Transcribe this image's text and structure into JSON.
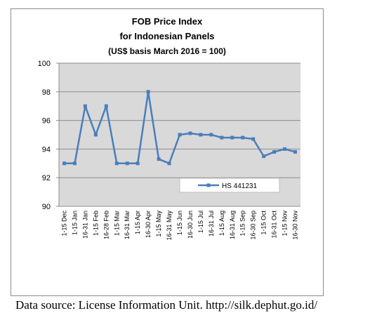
{
  "chart_data": {
    "type": "line",
    "title": [
      "FOB Price Index",
      "for Indonesian Panels",
      "(US$ basis March 2016 = 100)"
    ],
    "xlabel": "",
    "ylabel": "",
    "categories": [
      "1-15 Dec",
      "1-15 Jan",
      "16-31 Jan",
      "1-15 Feb",
      "16-28 Feb",
      "1-15 Mar",
      "16-31 Mar",
      "1-15 Apr",
      "16-30 Apr",
      "1-15 May",
      "16-31 May",
      "1-15 Jun",
      "16-30 Jun",
      "1-15 Jul",
      "16-31 Jul",
      "1-15 Aug",
      "16-31 Aug",
      "1-15 Sep",
      "16-30 Sep",
      "1-15 Oct",
      "16-31 Oct",
      "1-15 Nov",
      "16-30 Nov"
    ],
    "series": [
      {
        "name": "HS 441231",
        "values": [
          93.0,
          93.0,
          97.0,
          95.0,
          97.0,
          93.0,
          93.0,
          93.0,
          98.0,
          93.3,
          93.0,
          95.0,
          95.1,
          95.0,
          95.0,
          94.8,
          94.8,
          94.8,
          94.7,
          93.5,
          93.8,
          94.0,
          93.8
        ]
      }
    ],
    "ylim": [
      90,
      100
    ],
    "yticks": [
      "90",
      "92",
      "94",
      "96",
      "98",
      "100"
    ],
    "grid": true,
    "legend": "inside-bottom-right",
    "colors": {
      "line": "#4a7ebb",
      "plot_bg": "#d9d9d9",
      "grid": "#8c8c8c"
    }
  },
  "source_note": "Data source: License Information Unit. http://silk.dephut.go.id/"
}
